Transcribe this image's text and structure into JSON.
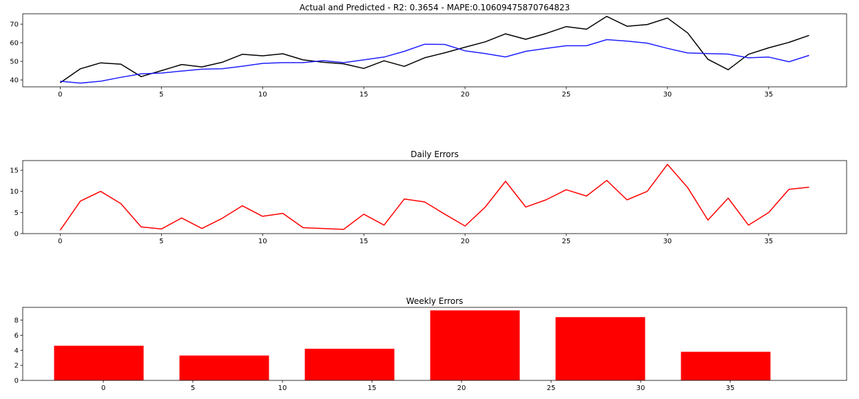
{
  "chart_data": [
    {
      "type": "line",
      "title": "Actual and Predicted - R2: 0.3654 - MAPE:0.10609475870764823",
      "xlabel": "",
      "ylabel": "",
      "xlim": [
        -1.85,
        38.85
      ],
      "ylim": [
        36.3,
        75.6
      ],
      "xticks": [
        0,
        5,
        10,
        15,
        20,
        25,
        30,
        35
      ],
      "yticks": [
        40,
        50,
        60,
        70
      ],
      "grid": false,
      "x": [
        0,
        1,
        2,
        3,
        4,
        5,
        6,
        7,
        8,
        9,
        10,
        11,
        12,
        13,
        14,
        15,
        16,
        17,
        18,
        19,
        20,
        21,
        22,
        23,
        24,
        25,
        26,
        27,
        28,
        29,
        30,
        31,
        32,
        33,
        34,
        35,
        36,
        37
      ],
      "series": [
        {
          "color": "#000000",
          "values": [
            38.5,
            46.0,
            49.2,
            48.5,
            41.8,
            45.0,
            48.3,
            47.0,
            49.5,
            53.8,
            53.0,
            54.1,
            50.8,
            49.5,
            48.7,
            46.2,
            50.3,
            47.3,
            51.9,
            54.6,
            57.6,
            60.5,
            64.8,
            61.9,
            65.0,
            68.7,
            67.3,
            74.2,
            68.9,
            69.8,
            73.3,
            65.3,
            51.1,
            45.5,
            53.8,
            57.3,
            60.2,
            64.0
          ]
        },
        {
          "color": "#1f1fff",
          "values": [
            39.3,
            38.3,
            39.3,
            41.4,
            43.3,
            43.7,
            44.8,
            45.8,
            46.0,
            47.4,
            48.9,
            49.3,
            49.3,
            50.4,
            49.3,
            50.8,
            52.3,
            55.4,
            59.2,
            59.1,
            55.7,
            54.2,
            52.4,
            55.4,
            57.0,
            58.4,
            58.4,
            61.7,
            60.9,
            59.8,
            57.0,
            54.5,
            54.2,
            53.9,
            51.9,
            52.3,
            49.8,
            53.2
          ]
        }
      ]
    },
    {
      "type": "line",
      "title": "Daily Errors",
      "xlabel": "",
      "ylabel": "",
      "xlim": [
        -1.85,
        38.85
      ],
      "ylim": [
        0,
        17.3
      ],
      "xticks": [
        0,
        5,
        10,
        15,
        20,
        25,
        30,
        35
      ],
      "yticks": [
        0,
        5,
        10,
        15
      ],
      "grid": false,
      "x": [
        0,
        1,
        2,
        3,
        4,
        5,
        6,
        7,
        8,
        9,
        10,
        11,
        12,
        13,
        14,
        15,
        16,
        17,
        18,
        19,
        20,
        21,
        22,
        23,
        24,
        25,
        26,
        27,
        28,
        29,
        30,
        31,
        32,
        33,
        34,
        35,
        36,
        37
      ],
      "series": [
        {
          "color": "#ff0000",
          "values": [
            0.8,
            7.7,
            10.0,
            7.1,
            1.6,
            1.1,
            3.7,
            1.2,
            3.6,
            6.6,
            4.1,
            4.8,
            1.4,
            1.2,
            1.0,
            4.6,
            2.0,
            8.2,
            7.5,
            4.6,
            1.8,
            6.3,
            12.4,
            6.3,
            8.0,
            10.4,
            8.9,
            12.6,
            8.0,
            10.0,
            16.4,
            10.9,
            3.2,
            8.4,
            2.0,
            5.0,
            10.5,
            11.0
          ]
        }
      ]
    },
    {
      "type": "bar",
      "title": "Weekly Errors",
      "xlabel": "",
      "ylabel": "",
      "xlim": [
        -4.5,
        41.5
      ],
      "ylim": [
        0,
        9.7
      ],
      "xticks": [
        0,
        5,
        10,
        15,
        20,
        25,
        30,
        35
      ],
      "yticks": [
        0,
        2,
        4,
        6,
        8
      ],
      "grid": false,
      "bar_width": 5,
      "x": [
        0,
        7,
        14,
        21,
        28,
        35
      ],
      "series": [
        {
          "color": "#ff0000",
          "values": [
            4.6,
            3.3,
            4.2,
            9.3,
            8.4,
            3.8
          ]
        }
      ]
    }
  ]
}
